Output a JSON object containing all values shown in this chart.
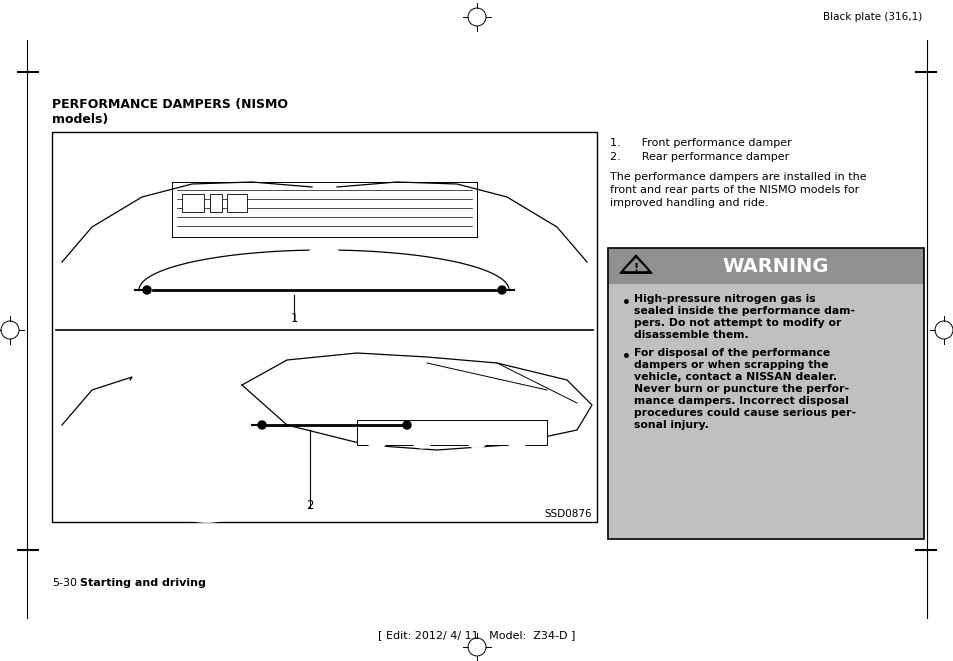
{
  "page_bg": "#ffffff",
  "top_label": "Black plate (316,1)",
  "title_line1": "PERFORMANCE DAMPERS (NISMO",
  "title_line2": "models)",
  "list_item1": "1.      Front performance damper",
  "list_item2": "2.      Rear performance damper",
  "body_text_lines": [
    "The performance dampers are installed in the",
    "front and rear parts of the NISMO models for",
    "improved handling and ride."
  ],
  "warning_title": "WARNING",
  "warning_bullet1_lines": [
    "High-pressure nitrogen gas is",
    "sealed inside the performance dam-",
    "pers. Do not attempt to modify or",
    "disassemble them."
  ],
  "warning_bullet2_lines": [
    "For disposal of the performance",
    "dampers or when scrapping the",
    "vehicle, contact a NISSAN dealer.",
    "Never burn or puncture the perfor-",
    "mance dampers. Incorrect disposal",
    "procedures could cause serious per-",
    "sonal injury."
  ],
  "warning_bg": "#c0c0c0",
  "warning_header_bg": "#909090",
  "footer_num": "5-30",
  "footer_text": "Starting and driving",
  "footer_center": "[ Edit: 2012/ 4/ 11   Model:  Z34-D ]",
  "image_code": "SSD0876",
  "diagram_border": "#000000"
}
